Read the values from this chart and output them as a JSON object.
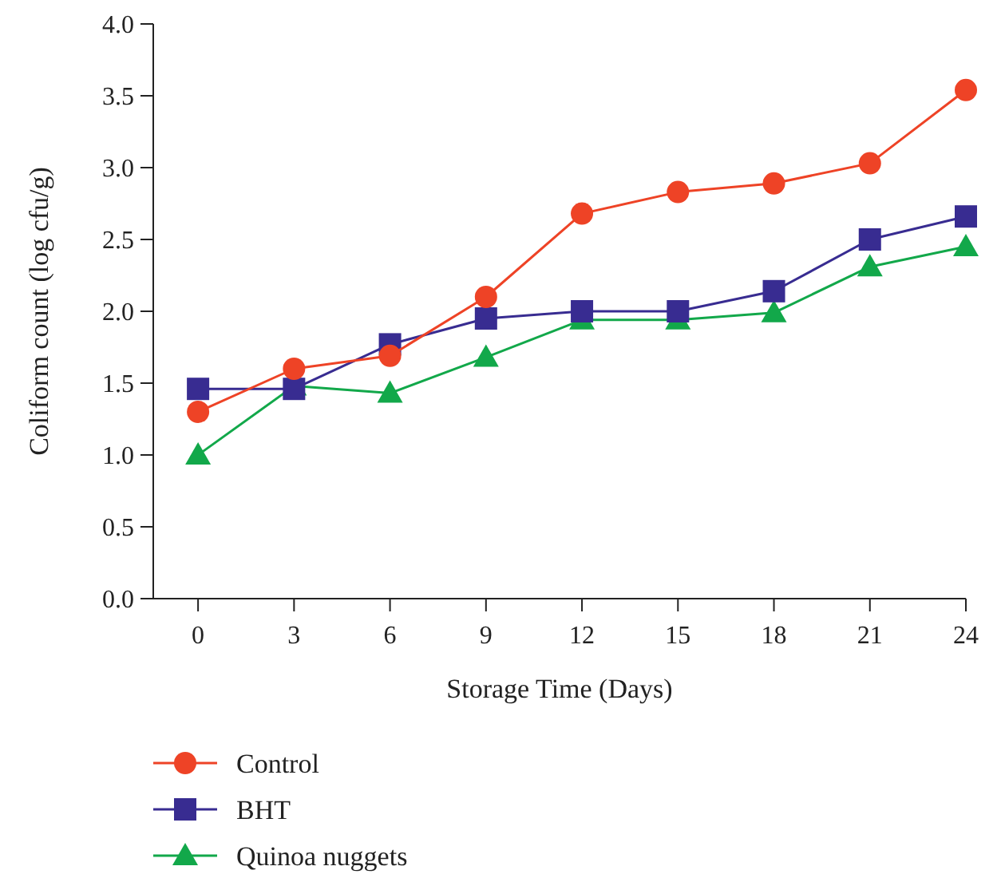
{
  "chart_data": {
    "type": "line",
    "xlabel": "Storage Time (Days)",
    "ylabel": "Coliform count (log cfu/g)",
    "x": [
      0,
      3,
      6,
      9,
      12,
      15,
      18,
      21,
      24
    ],
    "xlim": [
      -1.4,
      24
    ],
    "xticks": [
      0,
      3,
      6,
      9,
      12,
      15,
      18,
      21,
      24
    ],
    "ylim": [
      0,
      4
    ],
    "yticks": [
      {
        "value": 0,
        "label": "0.0"
      },
      {
        "value": 0.5,
        "label": "0.5"
      },
      {
        "value": 1,
        "label": "1.0"
      },
      {
        "value": 1.5,
        "label": "1.5"
      },
      {
        "value": 2,
        "label": "2.0"
      },
      {
        "value": 2.5,
        "label": "2.5"
      },
      {
        "value": 3,
        "label": "3.0"
      },
      {
        "value": 3.5,
        "label": "3.5"
      },
      {
        "value": 4,
        "label": "4.0"
      }
    ],
    "grid": false,
    "legend": "bottom left",
    "series": [
      {
        "name": "Control",
        "color": "#ee4326",
        "marker": "circle",
        "values": [
          1.3,
          1.6,
          1.69,
          2.1,
          2.68,
          2.83,
          2.89,
          3.03,
          3.54
        ]
      },
      {
        "name": "BHT",
        "color": "#382c91",
        "marker": "square",
        "values": [
          1.46,
          1.46,
          1.77,
          1.95,
          2.0,
          2.0,
          2.14,
          2.5,
          2.66
        ]
      },
      {
        "name": "Quinoa nuggets",
        "color": "#12a84a",
        "marker": "triangle",
        "values": [
          1.0,
          1.48,
          1.43,
          1.68,
          1.94,
          1.94,
          1.99,
          2.31,
          2.45
        ]
      }
    ]
  }
}
